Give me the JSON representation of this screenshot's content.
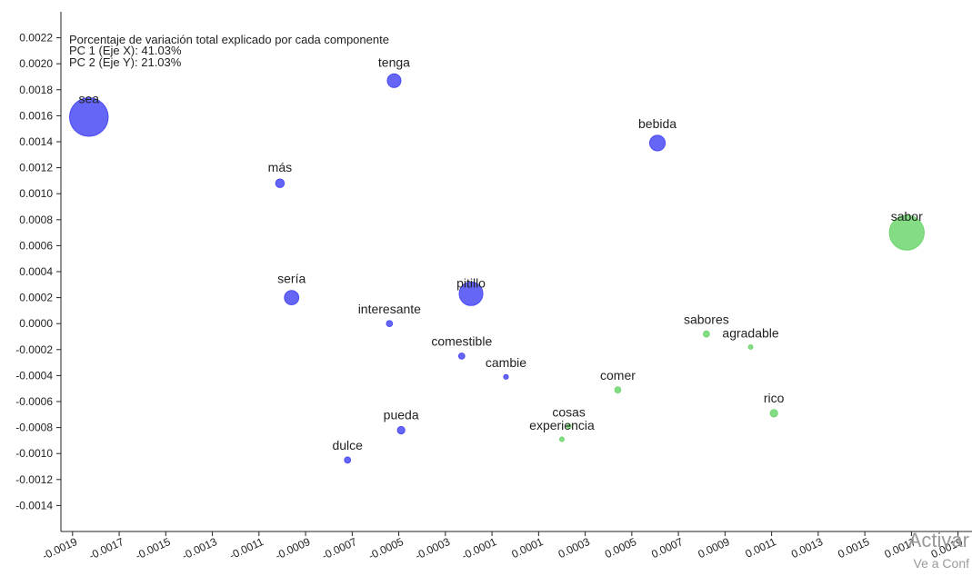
{
  "chart_data": {
    "type": "scatter",
    "annotation_lines": [
      "Porcentaje de variación total explicado por cada componente",
      "PC 1 (Eje X): 41.03%",
      "PC 2 (Eje Y): 21.03%"
    ],
    "x_ticks": [
      "-0.0019",
      "-0.0017",
      "-0.0015",
      "-0.0013",
      "-0.0011",
      "-0.0009",
      "-0.0007",
      "-0.0005",
      "-0.0003",
      "-0.0001",
      "0.0001",
      "0.0003",
      "0.0005",
      "0.0007",
      "0.0009",
      "0.0011",
      "0.0013",
      "0.0015",
      "0.0017",
      "0.0019"
    ],
    "y_ticks": [
      "0.0022",
      "0.0020",
      "0.0018",
      "0.0016",
      "0.0014",
      "0.0012",
      "0.0010",
      "0.0008",
      "0.0006",
      "0.0004",
      "0.0002",
      "0.0000",
      "-0.0002",
      "-0.0004",
      "-0.0006",
      "-0.0008",
      "-0.0010",
      "-0.0012",
      "-0.0014"
    ],
    "xlim": [
      -0.00195,
      0.00196
    ],
    "ylim": [
      -0.0016,
      0.0024
    ],
    "grid": false,
    "series_colors": {
      "blue": "#4a4af4",
      "green": "#6ed66e"
    },
    "points": [
      {
        "label": "sea",
        "x": -0.00183,
        "y": 0.00159,
        "size": 8.0,
        "color": "blue"
      },
      {
        "label": "tenga",
        "x": -0.00052,
        "y": 0.00187,
        "size": 1.0,
        "color": "blue"
      },
      {
        "label": "más",
        "x": -0.00101,
        "y": 0.00108,
        "size": 0.4,
        "color": "blue"
      },
      {
        "label": "bebida",
        "x": 0.00061,
        "y": 0.00139,
        "size": 1.3,
        "color": "blue"
      },
      {
        "label": "sería",
        "x": -0.00096,
        "y": 0.0002,
        "size": 1.1,
        "color": "blue"
      },
      {
        "label": "pitillo",
        "x": -0.00019,
        "y": 0.00023,
        "size": 3.0,
        "color": "blue"
      },
      {
        "label": "interesante",
        "x": -0.00054,
        "y": 0.0,
        "size": 0.2,
        "color": "blue"
      },
      {
        "label": "comestible",
        "x": -0.00023,
        "y": -0.00025,
        "size": 0.2,
        "color": "blue"
      },
      {
        "label": "cambie",
        "x": -4e-05,
        "y": -0.00041,
        "size": 0.12,
        "color": "blue"
      },
      {
        "label": "pueda",
        "x": -0.00049,
        "y": -0.00082,
        "size": 0.3,
        "color": "blue"
      },
      {
        "label": "dulce",
        "x": -0.00072,
        "y": -0.00105,
        "size": 0.2,
        "color": "blue"
      },
      {
        "label": "sabor",
        "x": 0.00168,
        "y": 0.0007,
        "size": 6.5,
        "color": "green"
      },
      {
        "label": "sabores",
        "x": 0.00082,
        "y": -8e-05,
        "size": 0.2,
        "color": "green"
      },
      {
        "label": "agradable",
        "x": 0.00101,
        "y": -0.00018,
        "size": 0.1,
        "color": "green"
      },
      {
        "label": "rico",
        "x": 0.00111,
        "y": -0.00069,
        "size": 0.3,
        "color": "green"
      },
      {
        "label": "comer",
        "x": 0.00044,
        "y": -0.00051,
        "size": 0.2,
        "color": "green"
      },
      {
        "label": "cosas",
        "x": 0.00023,
        "y": -0.00079,
        "size": 0.1,
        "color": "green"
      },
      {
        "label": "experiencia",
        "x": 0.0002,
        "y": -0.00089,
        "size": 0.1,
        "color": "green"
      }
    ]
  },
  "watermark": {
    "line1": "Activar",
    "line2": "Ve a Conf"
  }
}
